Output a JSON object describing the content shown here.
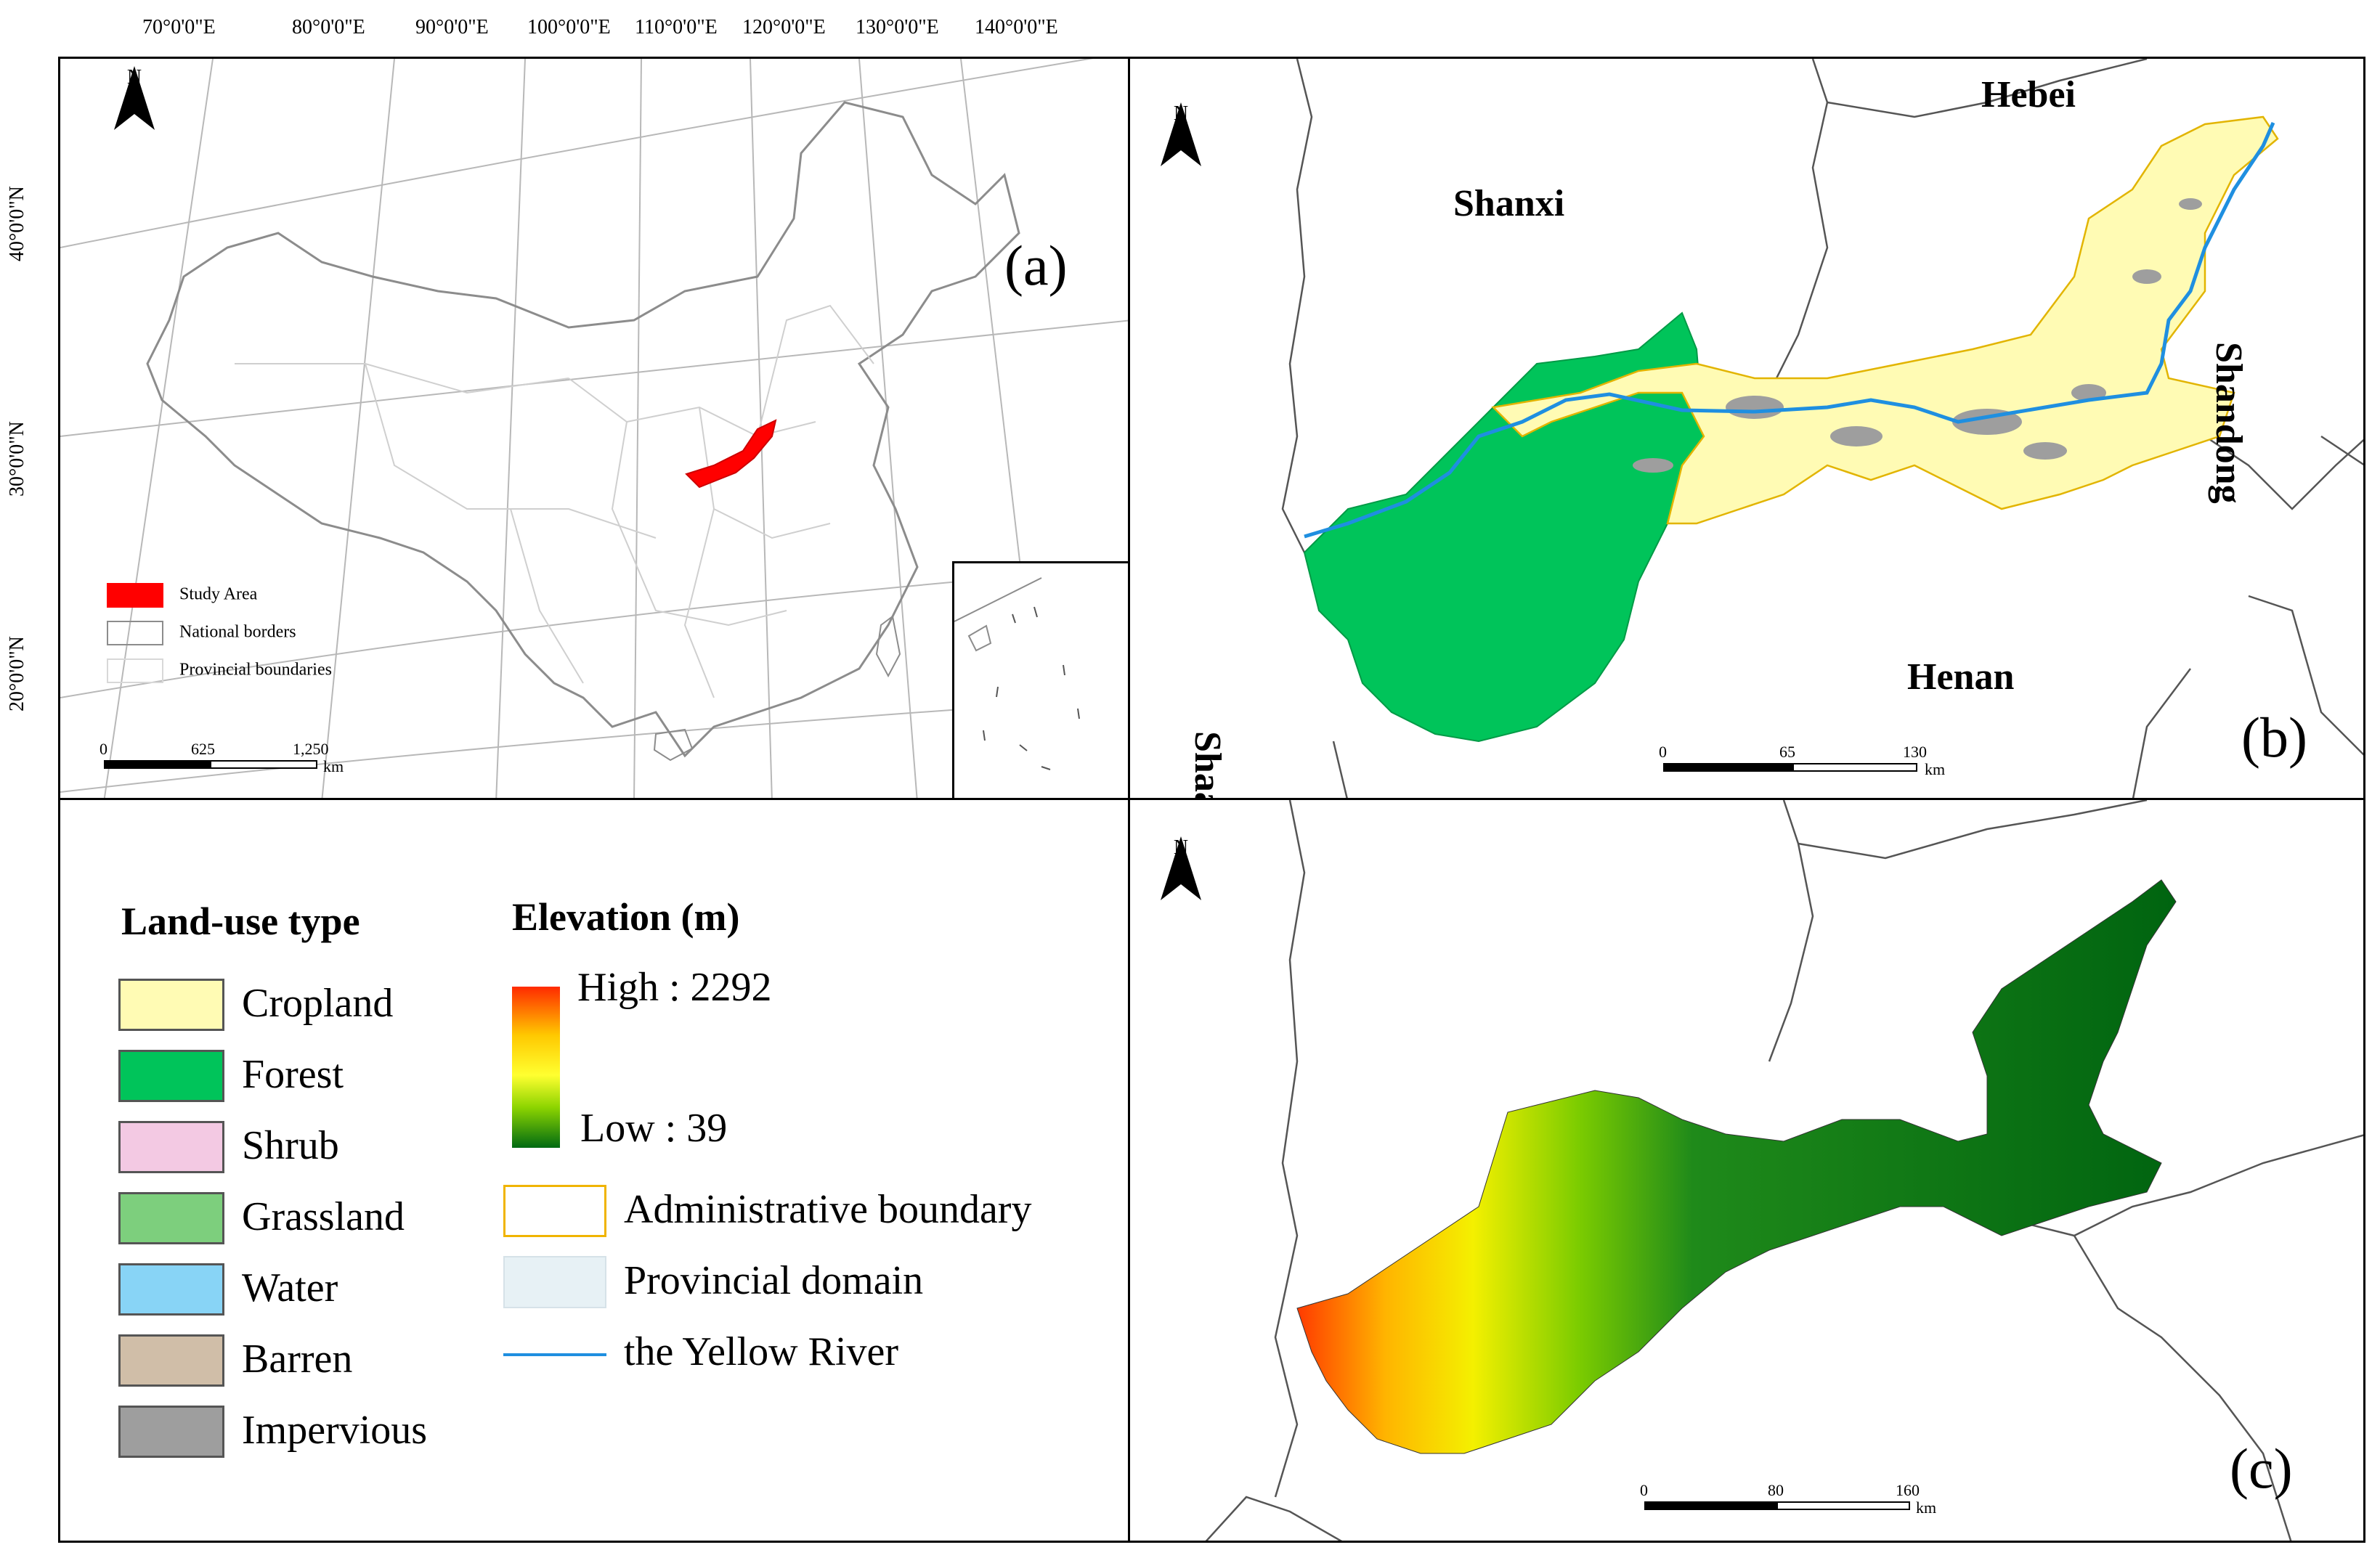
{
  "panel_a": {
    "label": "(a)",
    "lon_ticks": [
      "70°0'0\"E",
      "80°0'0\"E",
      "90°0'0\"E",
      "100°0'0\"E",
      "110°0'0\"E",
      "120°0'0\"E",
      "130°0'0\"E",
      "140°0'0\"E"
    ],
    "lat_ticks": [
      "40°0'0\"N",
      "30°0'0\"N",
      "20°0'0\"N"
    ],
    "north": "N",
    "legend": {
      "study_area": "Study Area",
      "national_borders": "National borders",
      "provincial_boundaries": "Provincial boundaries"
    },
    "scale": {
      "ticks": [
        "0",
        "625",
        "1,250"
      ],
      "unit": "km"
    }
  },
  "panel_b": {
    "label": "(b)",
    "north": "N",
    "provinces": {
      "shanxi": "Shanxi",
      "hebei": "Hebei",
      "shandong": "Shandong",
      "shaanxi": "Shaanxi",
      "henan": "Henan"
    },
    "scale": {
      "ticks": [
        "0",
        "65",
        "130"
      ],
      "unit": "km"
    }
  },
  "panel_c": {
    "label": "(c)",
    "north": "N",
    "scale": {
      "ticks": [
        "0",
        "80",
        "160"
      ],
      "unit": "km"
    }
  },
  "legend": {
    "land_use_title": "Land-use type",
    "land_use": [
      {
        "label": "Cropland",
        "color": "#fffbb4"
      },
      {
        "label": "Forest",
        "color": "#00c45a"
      },
      {
        "label": "Shrub",
        "color": "#f3c9e3"
      },
      {
        "label": "Grassland",
        "color": "#7dcf7d"
      },
      {
        "label": "Water",
        "color": "#88d4f6"
      },
      {
        "label": "Barren",
        "color": "#d0bea8"
      },
      {
        "label": "Impervious",
        "color": "#9e9e9e"
      }
    ],
    "elevation_title": "Elevation (m)",
    "elevation_high": "High : 2292",
    "elevation_low": "Low : 39",
    "admin_boundary": "Administrative boundary",
    "provincial_domain": "Provincial domain",
    "yellow_river": "the Yellow River"
  },
  "colors": {
    "study_area": "#ff0000",
    "river": "#1f8fe0",
    "admin_boundary": "#f0b400",
    "provincial_domain": "#e7f1f5"
  }
}
